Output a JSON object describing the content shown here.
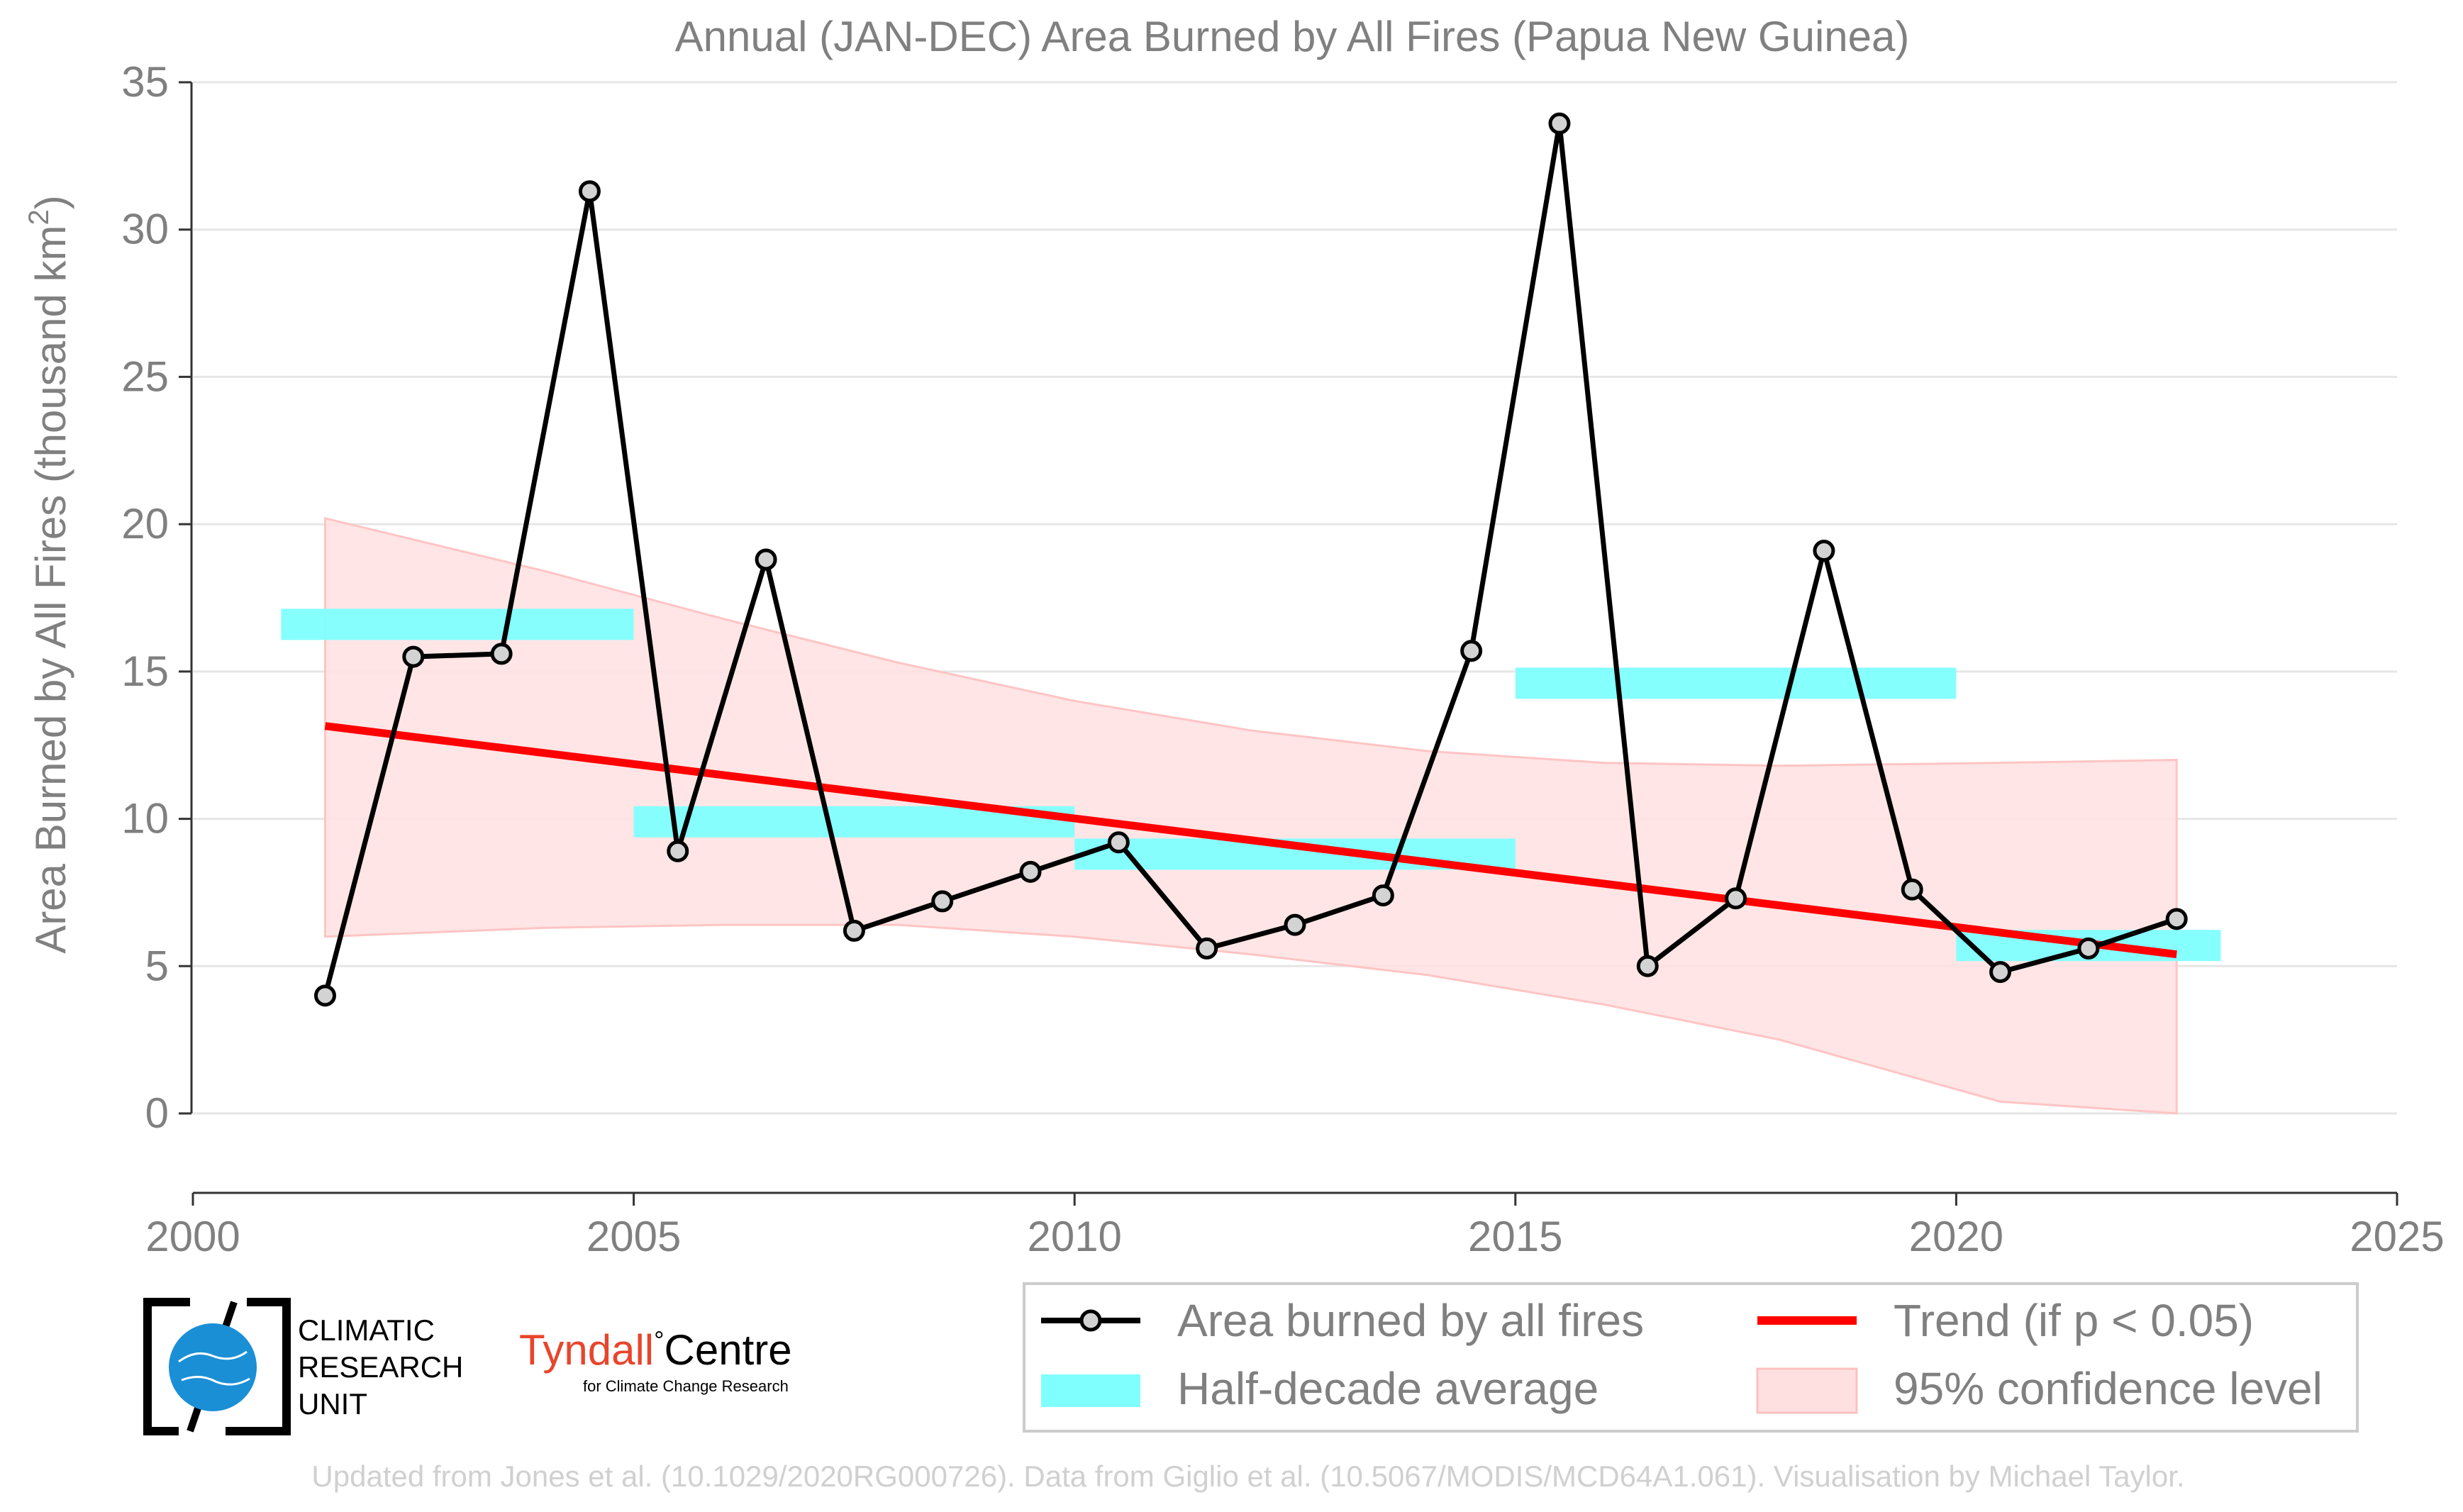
{
  "chart_data": {
    "type": "line",
    "title": "Annual (JAN-DEC) Area Burned by All Fires (Papua New Guinea)",
    "xlabel": "",
    "ylabel": "Area Burned by All Fires (thousand km²)",
    "xlim": [
      2000,
      2025
    ],
    "ylim": [
      0,
      35
    ],
    "x_ticks": [
      2000,
      2005,
      2010,
      2015,
      2020,
      2025
    ],
    "y_ticks": [
      0,
      5,
      10,
      15,
      20,
      25,
      30,
      35
    ],
    "grid": "horizontal",
    "legend_position": "bottom-right",
    "series": [
      {
        "name": "Area burned by all fires",
        "color": "#000000",
        "x": [
          2001.5,
          2002.5,
          2003.5,
          2004.5,
          2005.5,
          2006.5,
          2007.5,
          2008.5,
          2009.5,
          2010.5,
          2011.5,
          2012.5,
          2013.5,
          2014.5,
          2015.5,
          2016.5,
          2017.5,
          2018.5,
          2019.5,
          2020.5,
          2021.5,
          2022.5
        ],
        "values": [
          4.0,
          15.5,
          15.6,
          31.3,
          8.9,
          18.8,
          6.2,
          7.2,
          8.2,
          9.2,
          5.6,
          6.4,
          7.4,
          15.7,
          33.6,
          5.0,
          7.3,
          19.1,
          7.6,
          4.8,
          5.6,
          6.6
        ]
      },
      {
        "name": "Half-decade average",
        "color": "#80ffff",
        "segments": [
          {
            "x0": 2001,
            "x1": 2005,
            "value": 16.6
          },
          {
            "x0": 2005,
            "x1": 2010,
            "value": 9.9
          },
          {
            "x0": 2010,
            "x1": 2015,
            "value": 8.8
          },
          {
            "x0": 2015,
            "x1": 2020,
            "value": 14.6
          },
          {
            "x0": 2020,
            "x1": 2023,
            "value": 5.7
          }
        ]
      },
      {
        "name": "Trend (if p < 0.05)",
        "color": "#ff0000",
        "x": [
          2001.5,
          2022.5
        ],
        "values": [
          13.15,
          5.4
        ]
      },
      {
        "name": "95% confidence level",
        "color": "#ffe0e0",
        "x": [
          2001.5,
          2004,
          2006,
          2008,
          2010,
          2012,
          2014,
          2016,
          2018,
          2020.5,
          2022.5
        ],
        "upper": [
          20.2,
          18.4,
          16.8,
          15.3,
          14.0,
          13.0,
          12.3,
          11.9,
          11.8,
          11.9,
          12.0
        ],
        "lower": [
          6.0,
          6.3,
          6.4,
          6.4,
          6.0,
          5.4,
          4.7,
          3.7,
          2.5,
          0.4,
          0.0
        ]
      }
    ]
  },
  "legend": {
    "items": [
      {
        "label": "Area burned by all fires"
      },
      {
        "label": "Trend (if p < 0.05)"
      },
      {
        "label": "Half-decade average"
      },
      {
        "label": "95% confidence level"
      }
    ]
  },
  "logos": {
    "cru_line1": "CLIMATIC",
    "cru_line2": "RESEARCH",
    "cru_line3": "UNIT",
    "tyndall_name": "Tyndall",
    "tyndall_degree": "°",
    "tyndall_centre": "Centre",
    "tyndall_sub": "for Climate Change Research"
  },
  "footer": {
    "credit": "Updated from Jones et al. (10.1029/2020RG000726). Data from Giglio et al. (10.5067/MODIS/MCD64A1.061). Visualisation by Michael Taylor."
  }
}
